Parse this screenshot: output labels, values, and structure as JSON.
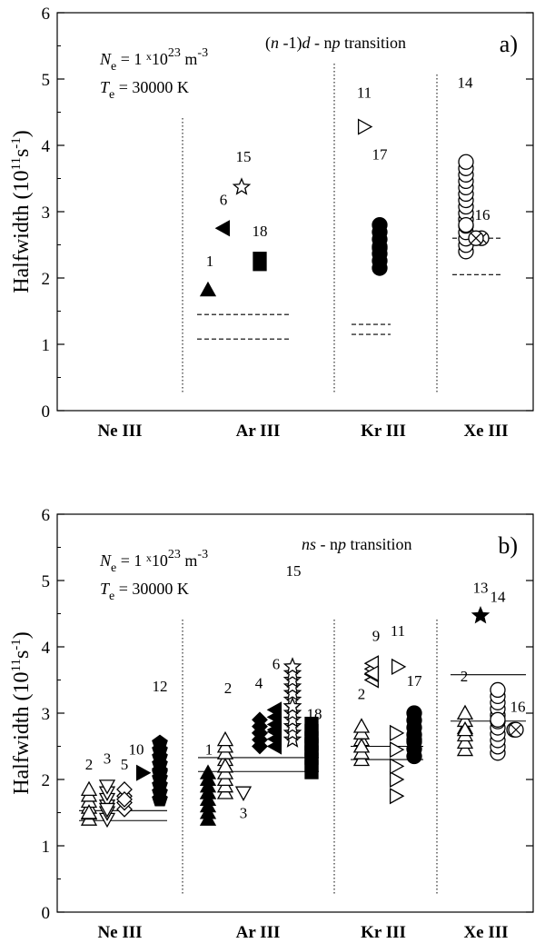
{
  "figure": {
    "description_label": "Stark halfwidths of doubly ionized noble gas lines"
  },
  "chart_data": [
    {
      "type": "scatter",
      "panel_label": "a)",
      "title": "(n -1)d - np transition",
      "title_parts": {
        "n1": "n",
        "mid": " -1)",
        "d": "d",
        "dash": " - n",
        "p": "p",
        "tail": " transition"
      },
      "ylabel": "Halfwidth  (10¹¹s⁻¹)",
      "ylabel_parts": {
        "main": "Halfwidth  (10",
        "exp1": "11",
        "unit": "s",
        "exp2": "-1",
        "close": ")"
      },
      "ylim": [
        0,
        6
      ],
      "yticks": [
        "0",
        "1",
        "2",
        "3",
        "4",
        "5",
        "6"
      ],
      "categories": [
        "Ne III",
        "Ar III",
        "Kr III",
        "Xe III"
      ],
      "conditions": {
        "ne": {
          "sym": "N",
          "sub": "e",
          "eq": " = 1 ",
          "x": "x",
          "ten": "10",
          "exp": "23",
          "unit": " m",
          "unitexp": "-3"
        },
        "te": {
          "sym": "T",
          "sub": "e",
          "eq": " = 30000 K"
        }
      },
      "points": [
        {
          "label": "1",
          "cat": "Ar III",
          "value": 1.82,
          "marker": "triangle-up-filled"
        },
        {
          "label": "6",
          "cat": "Ar III",
          "value": 2.75,
          "marker": "triangle-left-filled"
        },
        {
          "label": "15",
          "cat": "Ar III",
          "value": 3.37,
          "marker": "star-open"
        },
        {
          "label": "18",
          "cat": "Ar III",
          "value": 2.25,
          "marker": "square-filled"
        },
        {
          "label": "11",
          "cat": "Kr III",
          "value": 4.28,
          "marker": "triangle-right-open"
        },
        {
          "label": "17",
          "cat": "Kr III",
          "value": 2.45,
          "marker": "circle-filled",
          "spread": [
            2.15,
            2.8
          ]
        },
        {
          "label": "14",
          "cat": "Xe III",
          "value": 2.8,
          "marker": "circle-open",
          "spread": [
            2.4,
            3.75
          ]
        },
        {
          "label": "16",
          "cat": "Xe III",
          "value": 2.6,
          "marker": "circle-cross"
        }
      ],
      "reference_lines": [
        {
          "cat": "Ar III",
          "value": 1.45,
          "style": "dashed"
        },
        {
          "cat": "Ar III",
          "value": 1.08,
          "style": "dashed"
        },
        {
          "cat": "Kr III",
          "value": 1.3,
          "style": "dashed"
        },
        {
          "cat": "Kr III",
          "value": 1.15,
          "style": "dashed"
        },
        {
          "cat": "Xe III",
          "value": 2.6,
          "style": "dashed"
        },
        {
          "cat": "Xe III",
          "value": 2.05,
          "style": "dashed"
        }
      ]
    },
    {
      "type": "scatter",
      "panel_label": "b)",
      "title": "ns - np transition",
      "title_parts": {
        "n": "ns",
        "dash": " - n",
        "p": "p",
        "tail": " transition"
      },
      "ylabel": "Halfwidth  (10¹¹s⁻¹)",
      "ylabel_parts": {
        "main": "Halfwidth  (10",
        "exp1": "11",
        "unit": "s",
        "exp2": "-1",
        "close": ")"
      },
      "ylim": [
        0,
        6
      ],
      "yticks": [
        "0",
        "1",
        "2",
        "3",
        "4",
        "5",
        "6"
      ],
      "categories": [
        "Ne III",
        "Ar III",
        "Kr III",
        "Xe III"
      ],
      "conditions": {
        "ne": {
          "sym": "N",
          "sub": "e",
          "eq": " = 1 ",
          "x": "x",
          "ten": "10",
          "exp": "23",
          "unit": " m",
          "unitexp": "-3"
        },
        "te": {
          "sym": "T",
          "sub": "e",
          "eq": " = 30000 K"
        }
      },
      "points": [
        {
          "label": "2",
          "cat": "Ne III",
          "value": 1.5,
          "marker": "triangle-up-open",
          "spread": [
            1.4,
            1.85
          ]
        },
        {
          "label": "3",
          "cat": "Ne III",
          "value": 1.55,
          "marker": "triangle-down-open",
          "spread": [
            1.4,
            1.9
          ]
        },
        {
          "label": "5",
          "cat": "Ne III",
          "value": 1.7,
          "marker": "diamond-open",
          "spread": [
            1.55,
            1.85
          ]
        },
        {
          "label": "10",
          "cat": "Ne III",
          "value": 2.1,
          "marker": "triangle-right-filled"
        },
        {
          "label": "12",
          "cat": "Ne III",
          "value": 2.1,
          "marker": "pentagon-filled",
          "spread": [
            1.7,
            2.55
          ]
        },
        {
          "label": "1",
          "cat": "Ar III",
          "value": 1.8,
          "marker": "triangle-up-filled",
          "spread": [
            1.4,
            2.1
          ]
        },
        {
          "label": "2",
          "cat": "Ar III",
          "value": 2.2,
          "marker": "triangle-up-open",
          "spread": [
            1.8,
            2.6
          ]
        },
        {
          "label": "3",
          "cat": "Ar III",
          "value": 1.8,
          "marker": "triangle-down-open"
        },
        {
          "label": "4",
          "cat": "Ar III",
          "value": 2.7,
          "marker": "diamond-filled",
          "spread": [
            2.5,
            2.9
          ]
        },
        {
          "label": "6",
          "cat": "Ar III",
          "value": 2.75,
          "marker": "triangle-left-filled",
          "spread": [
            2.5,
            3.05
          ]
        },
        {
          "label": "15",
          "cat": "Ar III",
          "value": 3.1,
          "marker": "star-open",
          "spread": [
            2.6,
            3.7
          ]
        },
        {
          "label": "18",
          "cat": "Ar III",
          "value": 2.5,
          "marker": "square-filled",
          "spread": [
            2.15,
            2.8
          ]
        },
        {
          "label": "2",
          "cat": "Kr III",
          "value": 2.5,
          "marker": "triangle-up-open",
          "spread": [
            2.3,
            2.8
          ]
        },
        {
          "label": "9",
          "cat": "Kr III",
          "value": 3.6,
          "marker": "triangle-left-open",
          "spread": [
            3.5,
            3.75
          ]
        },
        {
          "label": "11",
          "cat": "Kr III",
          "value": 3.7,
          "marker": "triangle-right-open"
        },
        {
          "label": "17",
          "cat": "Kr III",
          "value": 2.6,
          "marker": "circle-filled",
          "spread": [
            2.35,
            3.0
          ]
        },
        {
          "label": "2",
          "cat": "Xe III",
          "value": 2.75,
          "marker": "triangle-up-open",
          "spread": [
            2.45,
            3.0
          ]
        },
        {
          "label": "13",
          "cat": "Xe III",
          "value": 4.47,
          "marker": "star-filled"
        },
        {
          "label": "14",
          "cat": "Xe III",
          "value": 2.9,
          "marker": "circle-open",
          "spread": [
            2.4,
            3.35
          ]
        },
        {
          "label": "16",
          "cat": "Xe III",
          "value": 2.75,
          "marker": "circle-cross"
        }
      ],
      "reference_lines": [
        {
          "cat": "Ne III",
          "value": 1.53,
          "style": "solid"
        },
        {
          "cat": "Ne III",
          "value": 1.38,
          "style": "solid"
        },
        {
          "cat": "Ar III",
          "value": 2.33,
          "style": "solid"
        },
        {
          "cat": "Ar III",
          "value": 2.12,
          "style": "solid"
        },
        {
          "cat": "Kr III",
          "value": 2.5,
          "style": "solid"
        },
        {
          "cat": "Kr III",
          "value": 2.3,
          "style": "solid"
        },
        {
          "cat": "Xe III",
          "value": 3.58,
          "style": "solid"
        },
        {
          "cat": "Xe III",
          "value": 2.88,
          "style": "solid"
        }
      ]
    }
  ]
}
